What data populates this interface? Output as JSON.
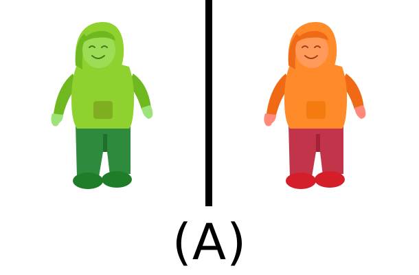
{
  "caption": "(A)",
  "panels": [
    {
      "name": "original-figure",
      "colors": {
        "hood": "#8fd12e",
        "hood_dark": "#6fb81f",
        "face": "#9fdc55",
        "hands": "#9ee27a",
        "pocket": "#7fae20",
        "pants": "#2e8a3c",
        "pants_dark": "#1f6e2c",
        "shoes": "#1f7d2a",
        "features": "#3f7a1a"
      }
    },
    {
      "name": "recolored-figure",
      "colors": {
        "hood": "#ff8a2a",
        "hood_dark": "#f06a16",
        "face": "#ff9a5a",
        "hands": "#ff8a7a",
        "pocket": "#f57a10",
        "pants": "#c2344a",
        "pants_dark": "#a52138",
        "shoes": "#d41e2a",
        "features": "#a0401a"
      }
    }
  ],
  "divider_color": "#000000"
}
